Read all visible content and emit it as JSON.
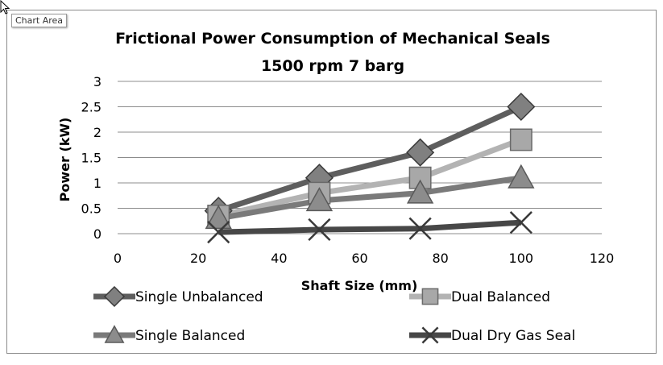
{
  "ui": {
    "tooltip_label": "Chart Area"
  },
  "chart_data": {
    "type": "line",
    "title": [
      "Frictional Power Consumption of Mechanical Seals",
      "1500 rpm 7 barg"
    ],
    "xlabel": "Shaft Size (mm)",
    "ylabel": "Power (kW)",
    "xlim": [
      0,
      120
    ],
    "ylim": [
      0,
      3
    ],
    "xticks": [
      0,
      20,
      40,
      60,
      80,
      100,
      120
    ],
    "yticks": [
      0,
      0.5,
      1,
      1.5,
      2,
      2.5,
      3
    ],
    "ytick_labels": [
      "0",
      "0.5",
      "1",
      "1.5",
      "2",
      "2.5",
      "3"
    ],
    "grid": "horizontal",
    "legend_position": "bottom",
    "x": [
      25,
      50,
      75,
      100
    ],
    "series": [
      {
        "name": "Single Unbalanced",
        "values": [
          0.45,
          1.1,
          1.6,
          2.5
        ],
        "marker": "diamond",
        "color": "#5e5e5e"
      },
      {
        "name": "Dual Balanced",
        "values": [
          0.35,
          0.8,
          1.1,
          1.85
        ],
        "marker": "square",
        "color": "#b3b3b3"
      },
      {
        "name": "Single Balanced",
        "values": [
          0.3,
          0.65,
          0.8,
          1.1
        ],
        "marker": "triangle",
        "color": "#7a7a7a"
      },
      {
        "name": "Dual Dry Gas Seal",
        "values": [
          0.03,
          0.08,
          0.1,
          0.22
        ],
        "marker": "x",
        "color": "#474747"
      }
    ]
  }
}
